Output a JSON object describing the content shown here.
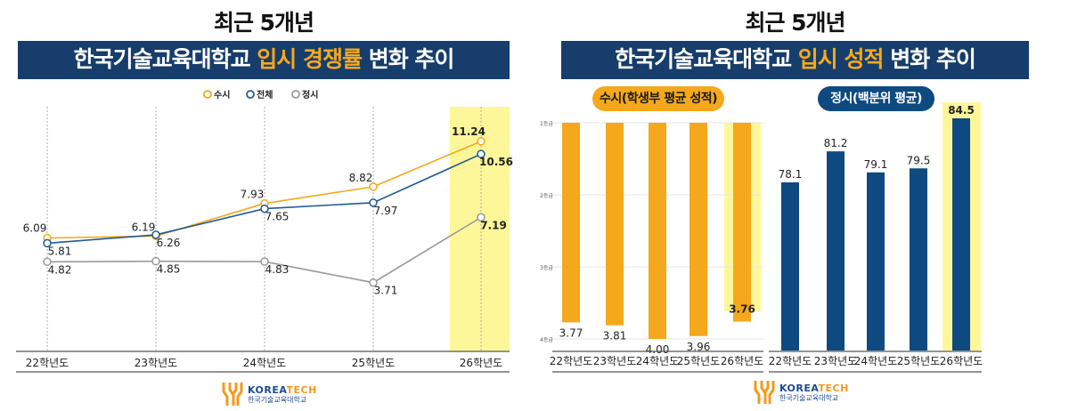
{
  "left": {
    "kicker": "최근 5개년",
    "title_pre": "한국기술교육대학교 ",
    "title_hl": "입시 경쟁률",
    "title_post": " 변화 추이"
  },
  "right": {
    "kicker": "최근 5개년",
    "title_pre": "한국기술교육대학교 ",
    "title_hl": "입시 성적",
    "title_post": " 변화 추이",
    "pill_susi": "수시(학생부 평균 성적)",
    "pill_jeongsi": "정시(백분위 평균)"
  },
  "logo": {
    "en_a": "KOREA",
    "en_b": "TECH",
    "ko": "한국기술교육대학교"
  },
  "colors": {
    "susi": "#f5a81c",
    "total": "#1f5a94",
    "jeongsi": "#9a9a9a",
    "navy": "#163d6b",
    "highlight": "#fdf79a",
    "bar_navy": "#0e4a80"
  },
  "chart_data": [
    {
      "type": "line",
      "categories": [
        "22학년도",
        "23학년도",
        "24학년도",
        "25학년도",
        "26학년도"
      ],
      "series": [
        {
          "name": "수시",
          "values": [
            6.09,
            6.19,
            7.93,
            8.82,
            11.24
          ]
        },
        {
          "name": "전체",
          "values": [
            5.81,
            6.26,
            7.65,
            7.97,
            10.56
          ]
        },
        {
          "name": "정시",
          "values": [
            4.82,
            4.85,
            4.83,
            3.71,
            7.19
          ]
        }
      ],
      "highlight_category": "26학년도",
      "legend": "top-center",
      "grid": "vertical dashed"
    },
    {
      "type": "bar",
      "categories": [
        "22학년도",
        "23학년도",
        "24학년도",
        "25학년도",
        "26학년도"
      ],
      "values": [
        3.77,
        3.81,
        4.0,
        3.96,
        3.76
      ],
      "labels": [
        "3.77",
        "3.81",
        "4.00",
        "3.96",
        "3.76"
      ],
      "yticks": [
        "1등급",
        "2등급",
        "3등급",
        "4등급"
      ],
      "ylim": [
        1,
        4
      ],
      "inverted": true,
      "highlight_category": "26학년도"
    },
    {
      "type": "bar",
      "categories": [
        "22학년도",
        "23학년도",
        "24학년도",
        "25학년도",
        "26학년도"
      ],
      "values": [
        78.1,
        81.2,
        79.1,
        79.5,
        84.5
      ],
      "labels": [
        "78.1",
        "81.2",
        "79.1",
        "79.5",
        "84.5"
      ],
      "highlight_category": "26학년도"
    }
  ]
}
